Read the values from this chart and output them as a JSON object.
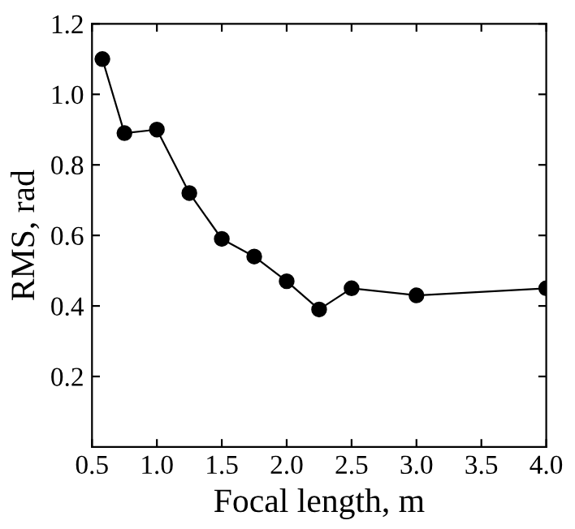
{
  "chart_data": {
    "type": "line",
    "xlabel": "Focal length, m",
    "ylabel": "RMS, rad",
    "x": [
      0.58,
      0.75,
      1.0,
      1.25,
      1.5,
      1.75,
      2.0,
      2.25,
      2.5,
      3.0,
      4.0
    ],
    "series": [
      {
        "color": "#000000",
        "values": [
          1.1,
          0.89,
          0.9,
          0.72,
          0.59,
          0.54,
          0.47,
          0.39,
          0.45,
          0.43,
          0.45
        ]
      }
    ],
    "xlim": [
      0.5,
      4.0
    ],
    "ylim": [
      0.0,
      1.2
    ],
    "xticks": [
      0.5,
      {
        "value": 1,
        "label": "1.0"
      },
      1.5,
      {
        "value": 2,
        "label": "2.0"
      },
      2.5,
      {
        "value": 3,
        "label": "3.0"
      },
      3.5,
      {
        "value": 4,
        "label": "4.0"
      }
    ],
    "yticks": [
      0.2,
      0.4,
      0.6,
      0.8,
      {
        "value": 1,
        "label": "1.0"
      },
      1.2
    ],
    "marker": "circle",
    "line_style": "solid",
    "grid": false,
    "legend": false
  }
}
